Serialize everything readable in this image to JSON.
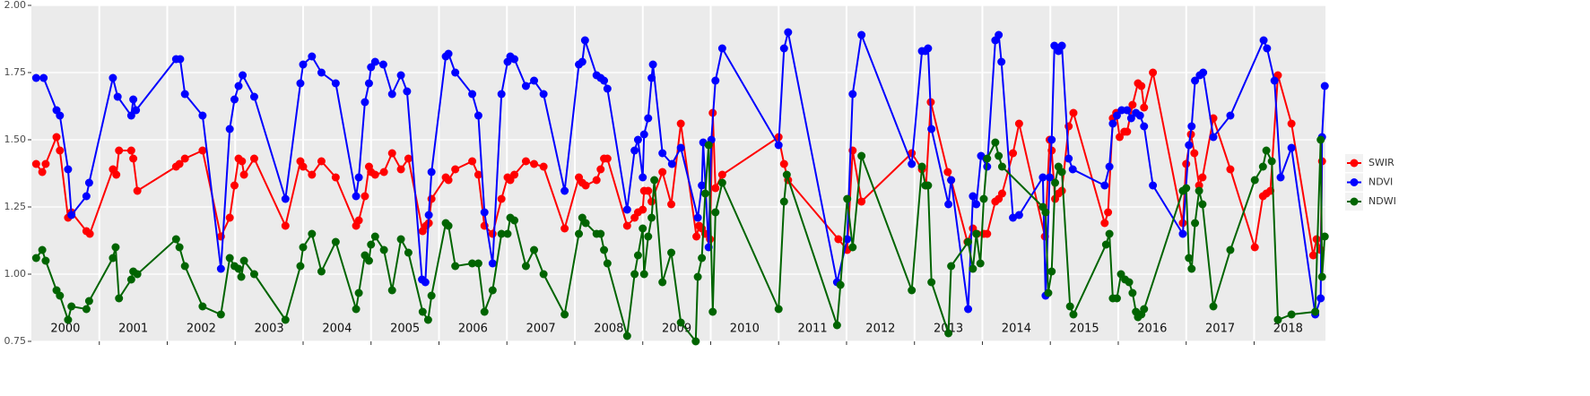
{
  "chart_data": {
    "type": "line",
    "year_labels": [
      "2000",
      "2001",
      "2002",
      "2003",
      "2004",
      "2005",
      "2006",
      "2007",
      "2008",
      "2009",
      "2010",
      "2011",
      "2012",
      "2013",
      "2014",
      "2015",
      "2016",
      "2017",
      "2018"
    ],
    "xlim": [
      2000,
      2019.05
    ],
    "xticks": [
      2001,
      2002,
      2003,
      2004,
      2005,
      2006,
      2007,
      2008,
      2009,
      2010,
      2011,
      2012,
      2013,
      2014,
      2015,
      2016,
      2017,
      2018
    ],
    "ylim": [
      0.75,
      2.0
    ],
    "yticks": [
      {
        "value": 0.75,
        "label": "0.75"
      },
      {
        "value": 1,
        "label": "1.00"
      },
      {
        "value": 1.25,
        "label": "1.25"
      },
      {
        "value": 1.5,
        "label": "1.50"
      },
      {
        "value": 1.75,
        "label": "1.75"
      },
      {
        "value": 2,
        "label": "2.00"
      }
    ],
    "grid": true,
    "legend": "right",
    "series": [
      {
        "name": "SWIR",
        "color": "#ff0000",
        "x": [
          2000.07,
          2000.16,
          2000.21,
          2000.37,
          2000.42,
          2000.54,
          2000.59,
          2000.81,
          2000.86,
          2001.2,
          2001.25,
          2001.29,
          2001.47,
          2001.5,
          2001.56,
          2002.13,
          2002.18,
          2002.26,
          2002.52,
          2002.79,
          2002.92,
          2002.99,
          2003.05,
          2003.1,
          2003.13,
          2003.28,
          2003.74,
          2003.96,
          2004.0,
          2004.13,
          2004.27,
          2004.48,
          2004.78,
          2004.82,
          2004.91,
          2004.97,
          2005.0,
          2005.06,
          2005.19,
          2005.31,
          2005.44,
          2005.55,
          2005.76,
          2005.81,
          2005.85,
          2005.89,
          2006.1,
          2006.14,
          2006.24,
          2006.49,
          2006.58,
          2006.67,
          2006.79,
          2006.92,
          2007.01,
          2007.05,
          2007.11,
          2007.28,
          2007.4,
          2007.54,
          2007.85,
          2008.06,
          2008.11,
          2008.16,
          2008.32,
          2008.38,
          2008.43,
          2008.48,
          2008.77,
          2008.88,
          2008.93,
          2009.0,
          2009.02,
          2009.08,
          2009.13,
          2009.29,
          2009.42,
          2009.56,
          2009.79,
          2009.83,
          2009.87,
          2009.92,
          2009.99,
          2010.03,
          2010.07,
          2010.17,
          2011.0,
          2011.08,
          2011.14,
          2011.88,
          2012.01,
          2012.09,
          2012.22,
          2012.96,
          2013.11,
          2013.17,
          2013.24,
          2013.49,
          2013.54,
          2013.78,
          2013.86,
          2013.92,
          2014.02,
          2014.07,
          2014.19,
          2014.24,
          2014.29,
          2014.45,
          2014.54,
          2014.92,
          2014.99,
          2015.02,
          2015.07,
          2015.12,
          2015.17,
          2015.27,
          2015.34,
          2015.8,
          2015.85,
          2015.92,
          2015.97,
          2016.02,
          2016.09,
          2016.13,
          2016.21,
          2016.29,
          2016.34,
          2016.38,
          2016.51,
          2016.95,
          2017.0,
          2017.07,
          2017.12,
          2017.19,
          2017.24,
          2017.4,
          2017.65,
          2018.01,
          2018.13,
          2018.18,
          2018.24,
          2018.35,
          2018.55,
          2018.87,
          2018.92,
          2018.98,
          2019.0
        ],
        "values": [
          1.41,
          1.38,
          1.41,
          1.51,
          1.46,
          1.21,
          1.23,
          1.16,
          1.15,
          1.39,
          1.37,
          1.46,
          1.46,
          1.43,
          1.31,
          1.4,
          1.41,
          1.43,
          1.46,
          1.14,
          1.21,
          1.33,
          1.43,
          1.42,
          1.37,
          1.43,
          1.18,
          1.42,
          1.4,
          1.37,
          1.42,
          1.36,
          1.18,
          1.2,
          1.29,
          1.4,
          1.38,
          1.37,
          1.38,
          1.45,
          1.39,
          1.43,
          1.16,
          1.18,
          1.19,
          1.28,
          1.36,
          1.35,
          1.39,
          1.42,
          1.37,
          1.18,
          1.15,
          1.28,
          1.36,
          1.35,
          1.37,
          1.42,
          1.41,
          1.4,
          1.17,
          1.36,
          1.34,
          1.33,
          1.35,
          1.39,
          1.43,
          1.43,
          1.18,
          1.21,
          1.23,
          1.24,
          1.31,
          1.31,
          1.27,
          1.38,
          1.26,
          1.56,
          1.14,
          1.18,
          1.17,
          1.15,
          1.13,
          1.6,
          1.32,
          1.37,
          1.51,
          1.41,
          1.35,
          1.13,
          1.09,
          1.46,
          1.27,
          1.45,
          1.39,
          1.33,
          1.64,
          1.38,
          1.35,
          1.12,
          1.17,
          1.15,
          1.15,
          1.15,
          1.27,
          1.28,
          1.3,
          1.45,
          1.56,
          1.14,
          1.5,
          1.46,
          1.28,
          1.3,
          1.31,
          1.55,
          1.6,
          1.19,
          1.23,
          1.58,
          1.6,
          1.51,
          1.53,
          1.53,
          1.63,
          1.71,
          1.7,
          1.62,
          1.75,
          1.19,
          1.41,
          1.52,
          1.45,
          1.33,
          1.36,
          1.58,
          1.39,
          1.1,
          1.29,
          1.3,
          1.31,
          1.74,
          1.56,
          1.07,
          1.13,
          1.09,
          1.42
        ]
      },
      {
        "name": "NDVI",
        "color": "#0000ff",
        "x": [
          2000.07,
          2000.18,
          2000.37,
          2000.42,
          2000.54,
          2000.59,
          2000.81,
          2000.85,
          2001.2,
          2001.27,
          2001.47,
          2001.5,
          2001.54,
          2002.13,
          2002.19,
          2002.26,
          2002.52,
          2002.79,
          2002.92,
          2002.99,
          2003.05,
          2003.11,
          2003.28,
          2003.74,
          2003.96,
          2004.0,
          2004.13,
          2004.27,
          2004.48,
          2004.78,
          2004.82,
          2004.91,
          2004.97,
          2005.0,
          2005.06,
          2005.18,
          2005.31,
          2005.44,
          2005.53,
          2005.75,
          2005.8,
          2005.85,
          2005.89,
          2006.1,
          2006.14,
          2006.24,
          2006.49,
          2006.58,
          2006.67,
          2006.79,
          2006.92,
          2007.01,
          2007.05,
          2007.11,
          2007.28,
          2007.4,
          2007.54,
          2007.85,
          2008.06,
          2008.11,
          2008.15,
          2008.32,
          2008.38,
          2008.43,
          2008.48,
          2008.77,
          2008.88,
          2008.93,
          2009.0,
          2009.02,
          2009.08,
          2009.13,
          2009.15,
          2009.29,
          2009.43,
          2009.56,
          2009.81,
          2009.87,
          2009.89,
          2009.97,
          2010.01,
          2010.07,
          2010.17,
          2011.0,
          2011.08,
          2011.14,
          2011.86,
          2012.01,
          2012.09,
          2012.22,
          2012.96,
          2013.11,
          2013.16,
          2013.2,
          2013.25,
          2013.5,
          2013.54,
          2013.79,
          2013.86,
          2013.91,
          2013.98,
          2014.07,
          2014.19,
          2014.24,
          2014.28,
          2014.45,
          2014.54,
          2014.89,
          2014.93,
          2014.99,
          2015.02,
          2015.06,
          2015.12,
          2015.17,
          2015.27,
          2015.33,
          2015.8,
          2015.87,
          2015.92,
          2015.98,
          2016.05,
          2016.13,
          2016.19,
          2016.26,
          2016.32,
          2016.38,
          2016.51,
          2016.95,
          2017.04,
          2017.08,
          2017.13,
          2017.2,
          2017.25,
          2017.4,
          2017.65,
          2018.14,
          2018.19,
          2018.3,
          2018.39,
          2018.55,
          2018.9,
          2018.98,
          2019.0,
          2019.04
        ],
        "values": [
          1.73,
          1.73,
          1.61,
          1.59,
          1.39,
          1.22,
          1.29,
          1.34,
          1.73,
          1.66,
          1.59,
          1.65,
          1.61,
          1.8,
          1.8,
          1.67,
          1.59,
          1.02,
          1.54,
          1.65,
          1.7,
          1.74,
          1.66,
          1.28,
          1.71,
          1.78,
          1.81,
          1.75,
          1.71,
          1.29,
          1.36,
          1.64,
          1.71,
          1.77,
          1.79,
          1.78,
          1.67,
          1.74,
          1.68,
          0.98,
          0.97,
          1.22,
          1.38,
          1.81,
          1.82,
          1.75,
          1.67,
          1.59,
          1.23,
          1.04,
          1.67,
          1.79,
          1.81,
          1.8,
          1.7,
          1.72,
          1.67,
          1.31,
          1.78,
          1.79,
          1.87,
          1.74,
          1.73,
          1.72,
          1.69,
          1.24,
          1.46,
          1.5,
          1.36,
          1.52,
          1.58,
          1.73,
          1.78,
          1.45,
          1.41,
          1.47,
          1.21,
          1.33,
          1.49,
          1.1,
          1.5,
          1.72,
          1.84,
          1.48,
          1.84,
          1.9,
          0.97,
          1.13,
          1.67,
          1.89,
          1.41,
          1.83,
          1.83,
          1.84,
          1.54,
          1.26,
          1.35,
          0.87,
          1.29,
          1.26,
          1.44,
          1.4,
          1.87,
          1.89,
          1.79,
          1.21,
          1.22,
          1.36,
          0.92,
          1.36,
          1.5,
          1.85,
          1.83,
          1.85,
          1.43,
          1.39,
          1.33,
          1.4,
          1.56,
          1.59,
          1.61,
          1.61,
          1.58,
          1.6,
          1.59,
          1.55,
          1.33,
          1.15,
          1.48,
          1.55,
          1.72,
          1.74,
          1.75,
          1.51,
          1.59,
          1.87,
          1.84,
          1.72,
          1.36,
          1.47,
          0.85,
          0.91,
          1.51,
          1.7
        ]
      },
      {
        "name": "NDWI",
        "color": "#006400",
        "x": [
          2000.07,
          2000.16,
          2000.21,
          2000.37,
          2000.42,
          2000.54,
          2000.59,
          2000.81,
          2000.85,
          2001.2,
          2001.24,
          2001.29,
          2001.47,
          2001.5,
          2001.56,
          2002.13,
          2002.18,
          2002.26,
          2002.52,
          2002.79,
          2002.92,
          2002.99,
          2003.05,
          2003.09,
          2003.13,
          2003.28,
          2003.74,
          2003.96,
          2004.0,
          2004.13,
          2004.27,
          2004.48,
          2004.78,
          2004.82,
          2004.91,
          2004.97,
          2005.0,
          2005.06,
          2005.19,
          2005.31,
          2005.44,
          2005.55,
          2005.76,
          2005.84,
          2005.89,
          2006.1,
          2006.14,
          2006.24,
          2006.49,
          2006.58,
          2006.67,
          2006.79,
          2006.92,
          2007.01,
          2007.05,
          2007.11,
          2007.28,
          2007.4,
          2007.54,
          2007.85,
          2008.06,
          2008.11,
          2008.16,
          2008.32,
          2008.38,
          2008.43,
          2008.48,
          2008.77,
          2008.88,
          2008.93,
          2009.0,
          2009.02,
          2009.08,
          2009.13,
          2009.17,
          2009.29,
          2009.42,
          2009.56,
          2009.78,
          2009.81,
          2009.87,
          2009.92,
          2009.97,
          2010.03,
          2010.07,
          2010.17,
          2011.0,
          2011.08,
          2011.12,
          2011.86,
          2011.91,
          2012.01,
          2012.09,
          2012.22,
          2012.96,
          2013.11,
          2013.16,
          2013.2,
          2013.25,
          2013.5,
          2013.54,
          2013.79,
          2013.86,
          2013.91,
          2013.97,
          2014.02,
          2014.07,
          2014.19,
          2014.24,
          2014.29,
          2014.89,
          2014.93,
          2014.97,
          2015.02,
          2015.07,
          2015.12,
          2015.17,
          2015.29,
          2015.34,
          2015.82,
          2015.87,
          2015.92,
          2015.98,
          2016.04,
          2016.1,
          2016.16,
          2016.21,
          2016.26,
          2016.29,
          2016.34,
          2016.38,
          2016.95,
          2017.0,
          2017.04,
          2017.08,
          2017.13,
          2017.19,
          2017.24,
          2017.4,
          2017.65,
          2018.01,
          2018.13,
          2018.18,
          2018.26,
          2018.35,
          2018.55,
          2018.9,
          2018.98,
          2019.0,
          2019.04
        ],
        "values": [
          1.06,
          1.09,
          1.05,
          0.94,
          0.92,
          0.83,
          0.88,
          0.87,
          0.9,
          1.06,
          1.1,
          0.91,
          0.98,
          1.01,
          1.0,
          1.13,
          1.1,
          1.03,
          0.88,
          0.85,
          1.06,
          1.03,
          1.02,
          0.99,
          1.05,
          1.0,
          0.83,
          1.03,
          1.1,
          1.15,
          1.01,
          1.12,
          0.87,
          0.93,
          1.07,
          1.05,
          1.11,
          1.14,
          1.09,
          0.94,
          1.13,
          1.08,
          0.86,
          0.83,
          0.92,
          1.19,
          1.18,
          1.03,
          1.04,
          1.04,
          0.86,
          0.94,
          1.15,
          1.15,
          1.21,
          1.2,
          1.03,
          1.09,
          1.0,
          0.85,
          1.15,
          1.21,
          1.19,
          1.15,
          1.15,
          1.09,
          1.04,
          0.77,
          1.0,
          1.07,
          1.17,
          1.0,
          1.14,
          1.21,
          1.35,
          0.97,
          1.08,
          0.82,
          0.75,
          0.99,
          1.06,
          1.3,
          1.48,
          0.86,
          1.23,
          1.34,
          0.87,
          1.27,
          1.37,
          0.81,
          0.96,
          1.28,
          1.1,
          1.44,
          0.94,
          1.4,
          1.33,
          1.33,
          0.97,
          0.78,
          1.03,
          1.12,
          1.02,
          1.15,
          1.04,
          1.28,
          1.43,
          1.49,
          1.44,
          1.4,
          1.25,
          1.23,
          0.93,
          1.01,
          1.34,
          1.4,
          1.38,
          0.88,
          0.85,
          1.11,
          1.15,
          0.91,
          0.91,
          1.0,
          0.98,
          0.97,
          0.93,
          0.86,
          0.84,
          0.85,
          0.87,
          1.31,
          1.32,
          1.06,
          1.02,
          1.19,
          1.31,
          1.26,
          0.88,
          1.09,
          1.35,
          1.4,
          1.46,
          1.42,
          0.83,
          0.85,
          0.86,
          1.5,
          0.99,
          1.14
        ]
      }
    ]
  }
}
